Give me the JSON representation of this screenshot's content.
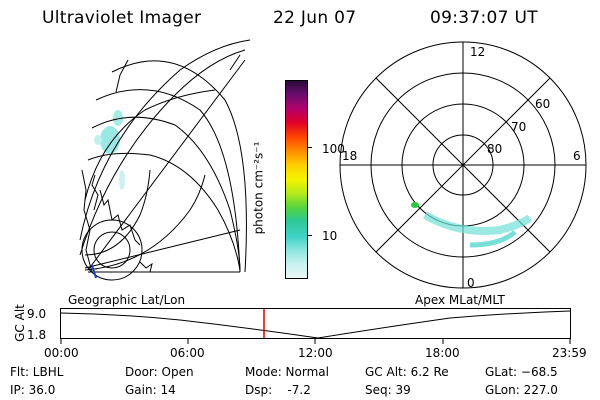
{
  "header": {
    "instrument": "Ultraviolet Imager",
    "date": "22 Jun 07",
    "time": "09:37:07 UT"
  },
  "left_map": {
    "label": "Geographic Lat/Lon"
  },
  "colorbar": {
    "unit_label": "photon cm⁻²s⁻¹",
    "ticks": [
      "100",
      "10"
    ],
    "colors": [
      "#2a0a3a",
      "#6b0e6e",
      "#b3006b",
      "#e0002a",
      "#ff4a00",
      "#ff9000",
      "#ffd000",
      "#f4f400",
      "#b6ea1c",
      "#58d43c",
      "#2cc996",
      "#3fd3c8",
      "#8fe6e0",
      "#c9f2f0",
      "#ebf6f6"
    ]
  },
  "polar_plot": {
    "label": "Apex MLat/MLT",
    "hour_labels": {
      "top": "12",
      "left": "18",
      "right": "6",
      "bottom": "0"
    },
    "lat_labels": [
      "60",
      "70",
      "80"
    ]
  },
  "timeline": {
    "axis_label": "GC Alt",
    "y_ticks": [
      "9.0",
      "1.8"
    ],
    "x_ticks": [
      "00:00",
      "06:00",
      "12:00",
      "18:00",
      "23:59"
    ],
    "marker_color": "#e00000",
    "marker_time": "09:37"
  },
  "footer": {
    "flt": "Flt: LBHL",
    "ip": "IP: 36.0",
    "door": "Door: Open",
    "gain": "Gain: 14",
    "mode": "Mode: Normal",
    "dsp": "Dsp:    -7.2",
    "gc_alt": "GC Alt: 6.2 Re",
    "seq": "Seq: 39",
    "glat": "GLat: −68.5",
    "glon": "GLon: 227.0"
  }
}
